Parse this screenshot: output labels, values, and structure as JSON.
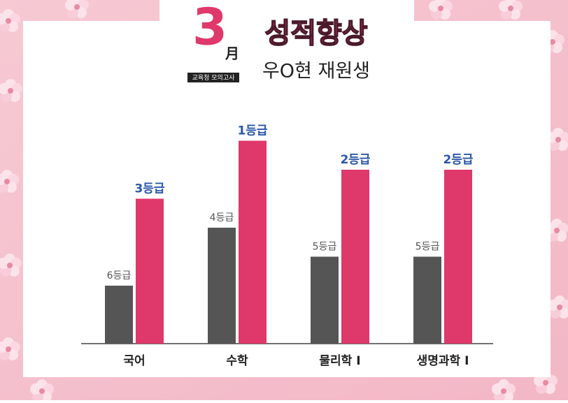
{
  "header": {
    "month_number": "3",
    "month_char": "月",
    "exam": "교육청 모의고사",
    "headline": "성적향상",
    "student": "우O현 재원생"
  },
  "chart_data": {
    "type": "bar",
    "categories": [
      "국어",
      "수학",
      "물리학 Ⅰ",
      "생명과학 Ⅰ"
    ],
    "series": [
      {
        "color": "#555555",
        "label_color": "#555555",
        "values": [
          6,
          4,
          5,
          5
        ],
        "value_labels": [
          "6등급",
          "4등급",
          "5등급",
          "5등급"
        ]
      },
      {
        "color": "#df386a",
        "label_color": "#2b57a9",
        "values": [
          3,
          1,
          2,
          2
        ],
        "value_labels": [
          "3등급",
          "1등급",
          "2등급",
          "2등급"
        ]
      }
    ],
    "ylim": [
      8,
      0
    ]
  }
}
